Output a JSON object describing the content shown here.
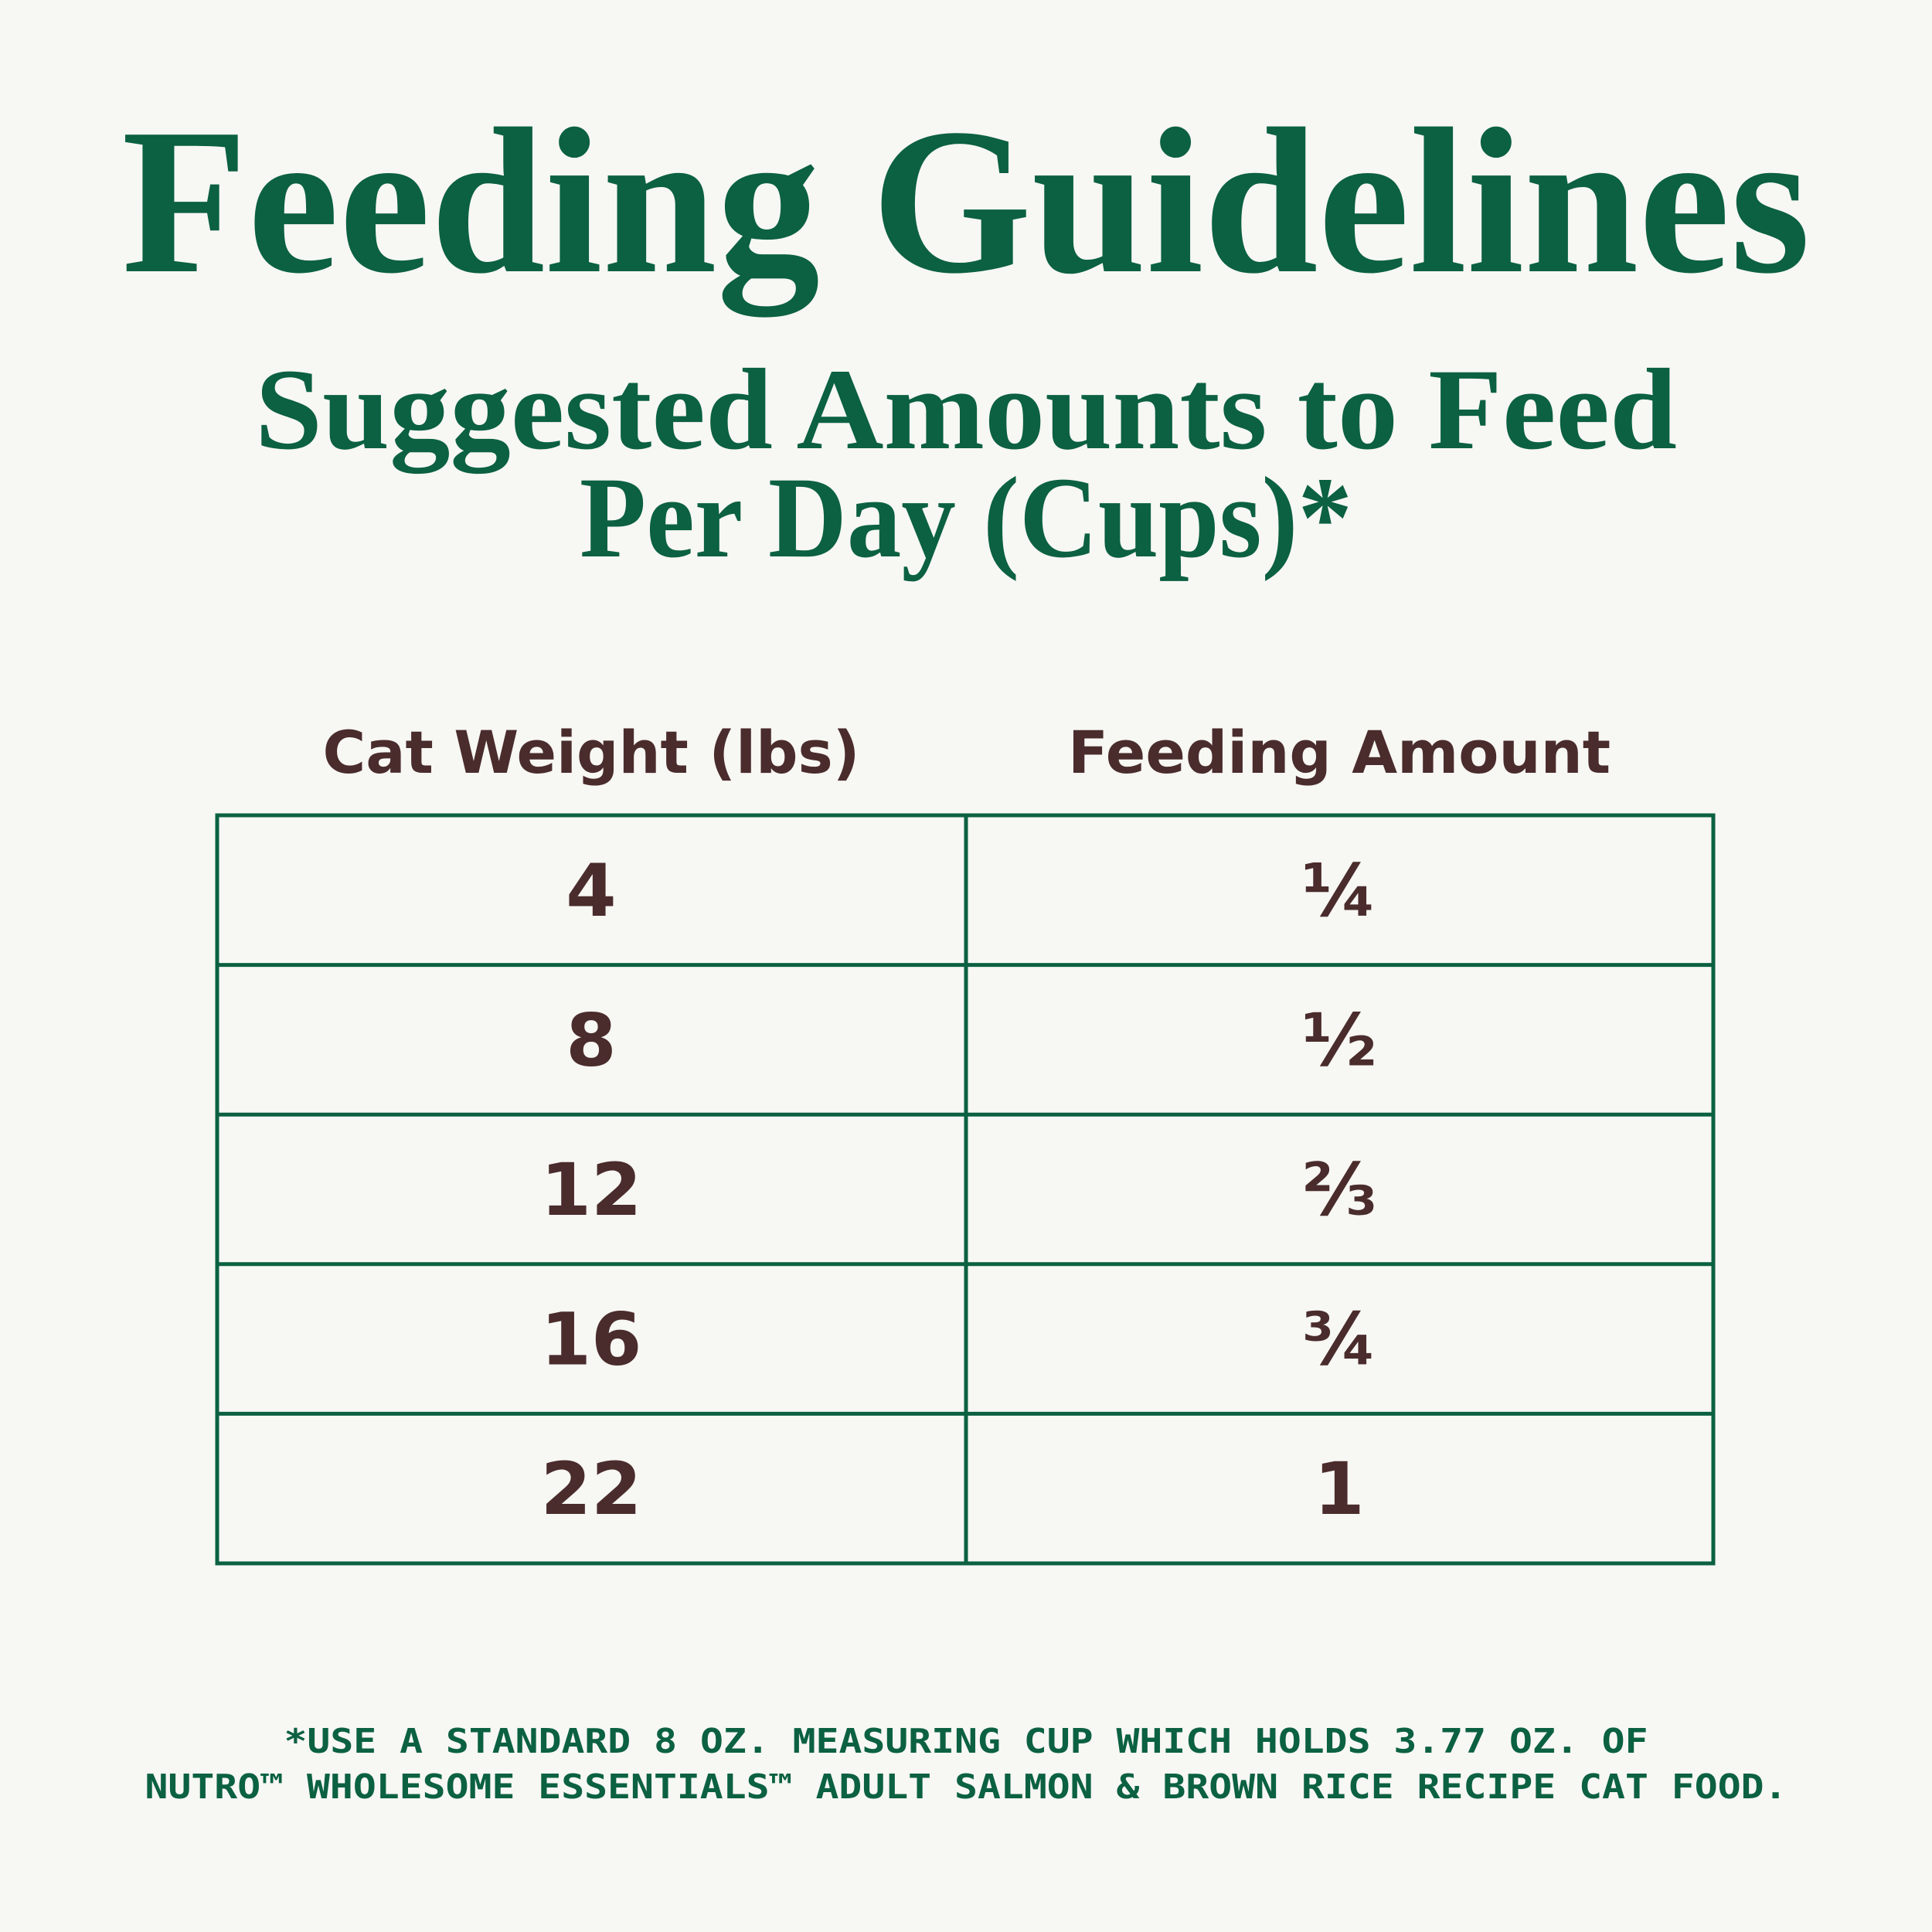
{
  "header": {
    "title": "Feeding Guidelines",
    "subtitle": [
      "Suggested Amounts to Feed",
      "Per Day (Cups)*"
    ]
  },
  "table": {
    "columns": [
      "Cat Weight (lbs)",
      "Feeding Amount"
    ],
    "rows": [
      [
        4,
        "¼"
      ],
      [
        8,
        "½"
      ],
      [
        12,
        "⅔"
      ],
      [
        16,
        "¾"
      ],
      [
        22,
        1
      ]
    ]
  },
  "footnote": [
    "*USE A STANDARD 8 OZ. MEASURING CUP WHICH HOLDS 3.77 OZ. OF",
    "NUTRO™ WHOLESOME ESSENTIALS™ ADULT SALMON & BROWN RICE RECIPE CAT FOOD."
  ]
}
